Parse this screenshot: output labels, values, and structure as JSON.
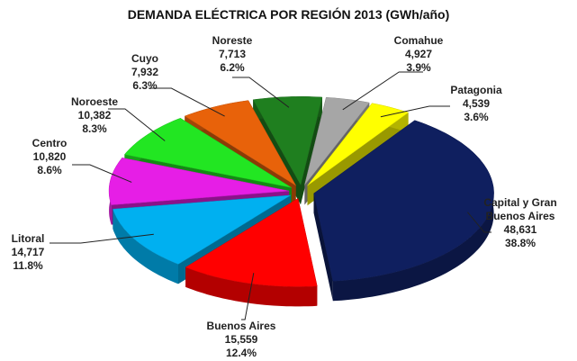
{
  "chart_data": {
    "type": "pie",
    "title": "DEMANDA ELÉCTRICA POR REGIÓN 2013 (GWh/año)",
    "categories": [
      "Comahue",
      "Patagonia",
      "Capital y Gran Buenos Aires",
      "Buenos Aires",
      "Litoral",
      "Centro",
      "Noroeste",
      "Cuyo",
      "Noreste"
    ],
    "values": [
      4927,
      4539,
      48631,
      15559,
      14717,
      10820,
      10382,
      7932,
      7713
    ],
    "value_labels": [
      "4,927",
      "4,539",
      "48,631",
      "15,559",
      "14,717",
      "10,820",
      "10,382",
      "7,932",
      "7,713"
    ],
    "percent_labels": [
      "3.9%",
      "3.6%",
      "38.8%",
      "12.4%",
      "11.8%",
      "8.6%",
      "8.3%",
      "6.3%",
      "6.2%"
    ],
    "colors": [
      "#a6a6a6",
      "#ffff00",
      "#0f1f5f",
      "#ff0000",
      "#00b0f0",
      "#e61ee6",
      "#22e622",
      "#e8620a",
      "#1f7f1f"
    ]
  }
}
